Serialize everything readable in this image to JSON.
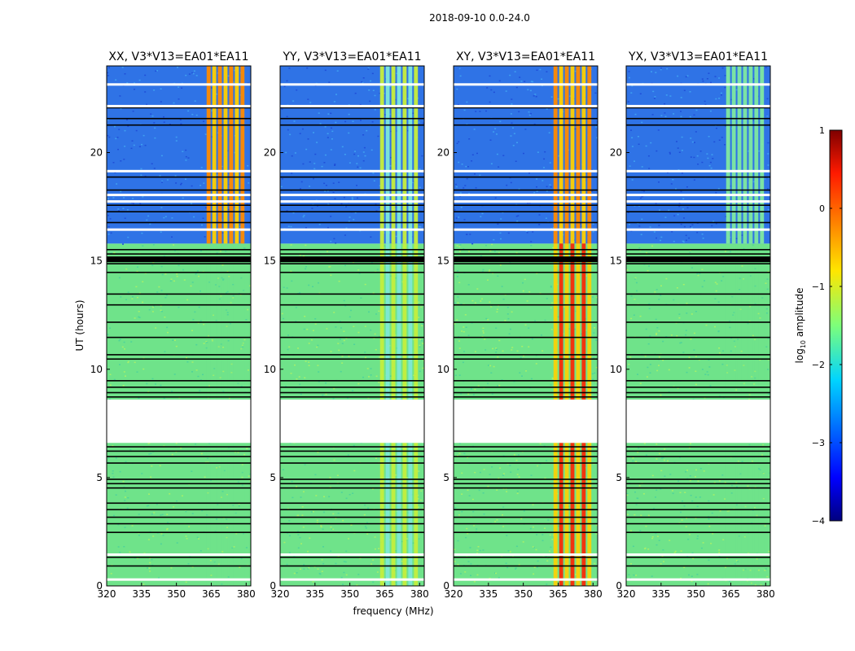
{
  "suptitle": "2018-09-10 0.0-24.0",
  "chart_data": {
    "type": "heatmap",
    "ylabel": "UT (hours)",
    "xlabel": "frequency (MHz)",
    "xlim": [
      320,
      382
    ],
    "ylim": [
      0,
      24
    ],
    "xticks": [
      320,
      335,
      350,
      365,
      380
    ],
    "yticks": [
      0,
      5,
      10,
      15,
      20
    ],
    "panels": [
      {
        "title": "XX, V3*V13=EA01*EA11",
        "level": "low"
      },
      {
        "title": "YY, V3*V13=EA01*EA11",
        "level": "mid"
      },
      {
        "title": "XY, V3*V13=EA01*EA11",
        "level": "high"
      },
      {
        "title": "YX, V3*V13=EA01*EA11",
        "level": "low"
      }
    ],
    "colorbar": {
      "label": "log10 amplitude",
      "label_main": "log",
      "label_sub": "10",
      "label_tail": " amplitude",
      "range": [
        -4,
        1
      ],
      "ticks": [
        1,
        0,
        -1,
        -2,
        -3,
        -4
      ],
      "tick_labels": [
        "1",
        "0",
        "−1",
        "−2",
        "−3",
        "−4"
      ]
    },
    "gap_hours": [
      [
        6.6,
        8.6
      ]
    ],
    "rfi_band_mhz": [
      363,
      380
    ]
  }
}
